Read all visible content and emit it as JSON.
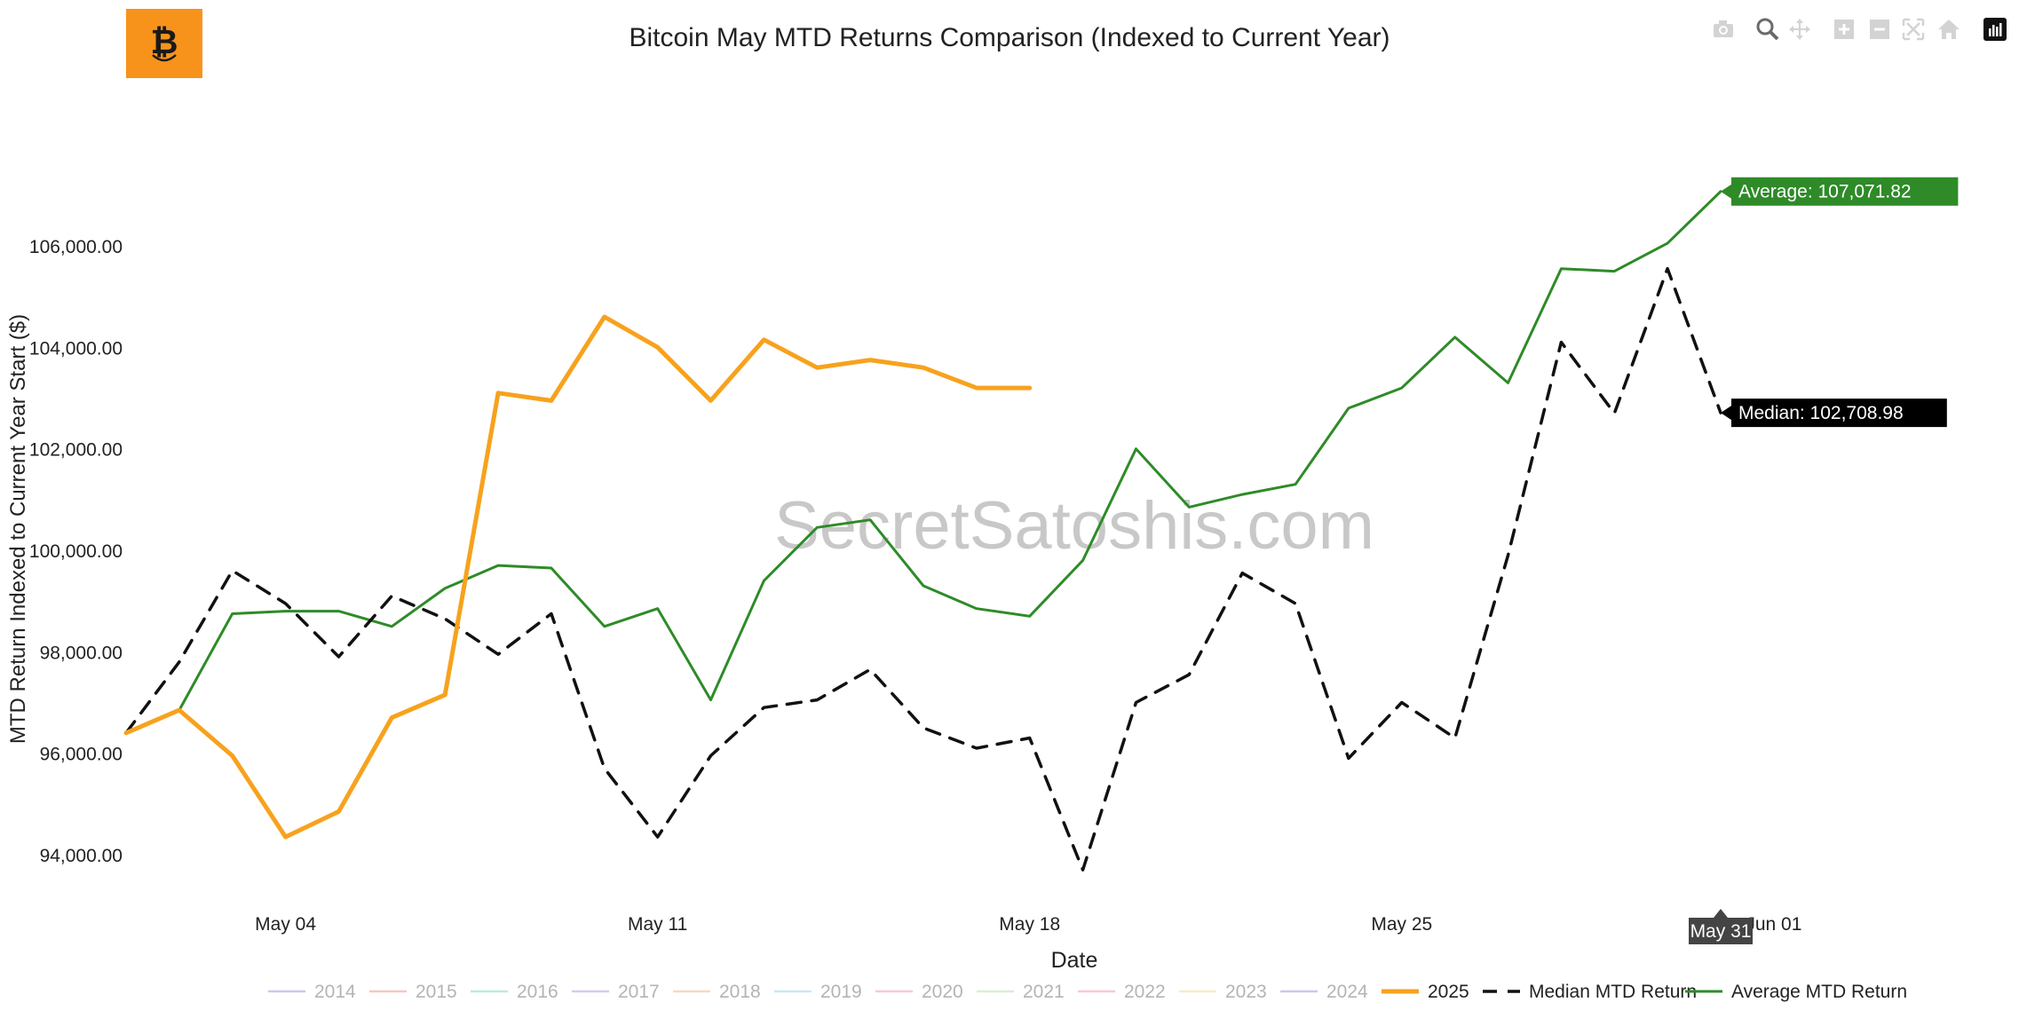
{
  "title": "Bitcoin May MTD Returns Comparison (Indexed to Current Year)",
  "watermark": "SecretSatoshis.com",
  "colors": {
    "orange": "#f7a21d",
    "median": "#111111",
    "average": "#2e8b28",
    "logo": "#f7931a"
  },
  "modebar": [
    "camera-icon",
    "zoom-icon",
    "pan-icon",
    "zoom-in-icon",
    "zoom-out-icon",
    "autoscale-icon",
    "reset-home-icon",
    "plotly-logo-icon"
  ],
  "chart_data": {
    "type": "line",
    "title": "Bitcoin May MTD Returns Comparison (Indexed to Current Year)",
    "xlabel": "Date",
    "ylabel": "MTD Return Indexed to Current Year Start ($)",
    "ylim": [
      93300,
      107900
    ],
    "xlim": [
      "2025-05-01",
      "2025-05-31"
    ],
    "x_ticks": [
      "May 04",
      "May 11",
      "May 18",
      "May 25",
      "Jun 01"
    ],
    "y_ticks": [
      "94,000.00",
      "96,000.00",
      "98,000.00",
      "100,000.00",
      "102,000.00",
      "104,000.00",
      "106,000.00"
    ],
    "grid": false,
    "legend_position": "bottom",
    "legend": [
      "2014",
      "2015",
      "2016",
      "2017",
      "2018",
      "2019",
      "2020",
      "2021",
      "2022",
      "2023",
      "2024",
      "2025",
      "Median MTD Return",
      "Average MTD Return"
    ],
    "hidden_legend_colors": [
      "#c8c8f0",
      "#f5c8c0",
      "#b8ecd8",
      "#d8c8f0",
      "#f8d8c0",
      "#c8e8f8",
      "#f8c8d8",
      "#d8f0d0",
      "#f8c8d0",
      "#f8ecc8",
      "#c8c8f0"
    ],
    "series": [
      {
        "name": "2025",
        "style": "solid-thick",
        "color": "#f7a21d",
        "x": [
          "2025-05-01",
          "2025-05-02",
          "2025-05-03",
          "2025-05-04",
          "2025-05-05",
          "2025-05-06",
          "2025-05-07",
          "2025-05-08",
          "2025-05-09",
          "2025-05-10",
          "2025-05-11",
          "2025-05-12",
          "2025-05-13",
          "2025-05-14",
          "2025-05-15",
          "2025-05-16",
          "2025-05-17",
          "2025-05-18"
        ],
        "y": [
          96400,
          96850,
          95950,
          94350,
          94850,
          96700,
          97150,
          103100,
          102950,
          104600,
          104000,
          102950,
          104150,
          103600,
          103750,
          103600,
          103200,
          103200
        ]
      },
      {
        "name": "Median MTD Return",
        "style": "dash",
        "color": "#111111",
        "x": [
          "2025-05-01",
          "2025-05-02",
          "2025-05-03",
          "2025-05-04",
          "2025-05-05",
          "2025-05-06",
          "2025-05-07",
          "2025-05-08",
          "2025-05-09",
          "2025-05-10",
          "2025-05-11",
          "2025-05-12",
          "2025-05-13",
          "2025-05-14",
          "2025-05-15",
          "2025-05-16",
          "2025-05-17",
          "2025-05-18",
          "2025-05-19",
          "2025-05-20",
          "2025-05-21",
          "2025-05-22",
          "2025-05-23",
          "2025-05-24",
          "2025-05-25",
          "2025-05-26",
          "2025-05-27",
          "2025-05-28",
          "2025-05-29",
          "2025-05-30",
          "2025-05-31"
        ],
        "y": [
          96400,
          97800,
          99600,
          98950,
          97900,
          99100,
          98650,
          97950,
          98750,
          95700,
          94350,
          95950,
          96900,
          97050,
          97650,
          96500,
          96100,
          96300,
          93700,
          97000,
          97550,
          99550,
          98950,
          95900,
          97000,
          96300,
          99900,
          104100,
          102700,
          105550,
          102708.98
        ]
      },
      {
        "name": "Average MTD Return",
        "style": "solid",
        "color": "#2e8b28",
        "x": [
          "2025-05-01",
          "2025-05-02",
          "2025-05-03",
          "2025-05-04",
          "2025-05-05",
          "2025-05-06",
          "2025-05-07",
          "2025-05-08",
          "2025-05-09",
          "2025-05-10",
          "2025-05-11",
          "2025-05-12",
          "2025-05-13",
          "2025-05-14",
          "2025-05-15",
          "2025-05-16",
          "2025-05-17",
          "2025-05-18",
          "2025-05-19",
          "2025-05-20",
          "2025-05-21",
          "2025-05-22",
          "2025-05-23",
          "2025-05-24",
          "2025-05-25",
          "2025-05-26",
          "2025-05-27",
          "2025-05-28",
          "2025-05-29",
          "2025-05-30",
          "2025-05-31"
        ],
        "y": [
          96400,
          96850,
          98750,
          98800,
          98800,
          98500,
          99250,
          99700,
          99650,
          98500,
          98850,
          97050,
          99400,
          100450,
          100600,
          99300,
          98850,
          98700,
          99800,
          102000,
          100850,
          101100,
          101300,
          102800,
          103200,
          104200,
          103300,
          105550,
          105500,
          106050,
          107071.82
        ]
      }
    ],
    "annotations": [
      {
        "series": "Average MTD Return",
        "text": "Average: 107,071.82"
      },
      {
        "series": "Median MTD Return",
        "text": "Median: 102,708.98"
      },
      {
        "axis": "x",
        "text": "May 31"
      }
    ]
  }
}
